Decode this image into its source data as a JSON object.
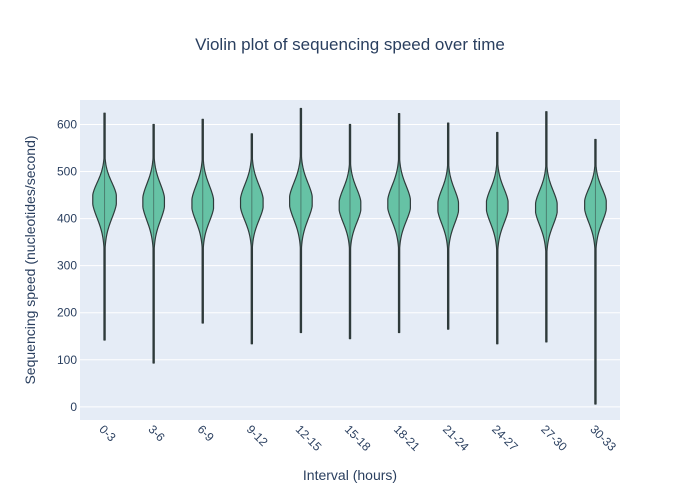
{
  "chart_data": {
    "type": "violin",
    "title": "Violin plot of sequencing speed over time",
    "xlabel": "Interval (hours)",
    "ylabel": "Sequencing speed (nucleotides/second)",
    "ylim": [
      -28,
      652
    ],
    "yticks": [
      0,
      100,
      200,
      300,
      400,
      500,
      600
    ],
    "grid": true,
    "fill_color": "#66c2a5",
    "line_color": "#2f3b3b",
    "plot_bg": "#e5ecf6",
    "categories": [
      "0-3",
      "3-6",
      "6-9",
      "9-12",
      "12-15",
      "15-18",
      "18-21",
      "21-24",
      "24-27",
      "27-30",
      "30-33"
    ],
    "distributions": [
      {
        "category": "0-3",
        "min": 142,
        "max": 624,
        "center": 442,
        "q1": 405,
        "q3": 475,
        "max_halfwidth": 0.24
      },
      {
        "category": "3-6",
        "min": 93,
        "max": 600,
        "center": 436,
        "q1": 400,
        "q3": 472,
        "max_halfwidth": 0.22
      },
      {
        "category": "6-9",
        "min": 178,
        "max": 611,
        "center": 432,
        "q1": 398,
        "q3": 468,
        "max_halfwidth": 0.22
      },
      {
        "category": "9-12",
        "min": 134,
        "max": 580,
        "center": 434,
        "q1": 400,
        "q3": 470,
        "max_halfwidth": 0.23
      },
      {
        "category": "12-15",
        "min": 158,
        "max": 634,
        "center": 438,
        "q1": 402,
        "q3": 474,
        "max_halfwidth": 0.23
      },
      {
        "category": "15-18",
        "min": 145,
        "max": 600,
        "center": 428,
        "q1": 395,
        "q3": 462,
        "max_halfwidth": 0.22
      },
      {
        "category": "18-21",
        "min": 158,
        "max": 623,
        "center": 432,
        "q1": 398,
        "q3": 468,
        "max_halfwidth": 0.23
      },
      {
        "category": "21-24",
        "min": 165,
        "max": 603,
        "center": 426,
        "q1": 393,
        "q3": 460,
        "max_halfwidth": 0.21
      },
      {
        "category": "24-27",
        "min": 134,
        "max": 583,
        "center": 428,
        "q1": 394,
        "q3": 462,
        "max_halfwidth": 0.22
      },
      {
        "category": "27-30",
        "min": 138,
        "max": 627,
        "center": 424,
        "q1": 390,
        "q3": 458,
        "max_halfwidth": 0.22
      },
      {
        "category": "30-33",
        "min": 6,
        "max": 568,
        "center": 430,
        "q1": 396,
        "q3": 462,
        "max_halfwidth": 0.22
      }
    ]
  }
}
